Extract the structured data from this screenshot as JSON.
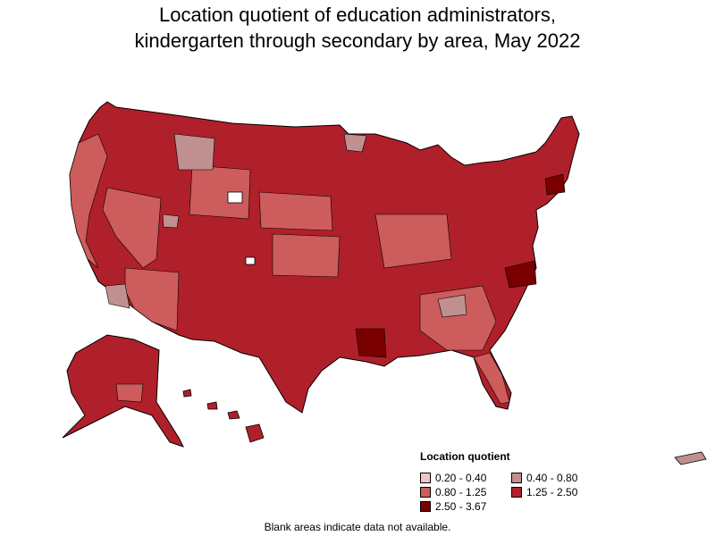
{
  "title": {
    "line1": "Location quotient of education administrators,",
    "line2": "kindergarten through secondary by area, May 2022"
  },
  "legend": {
    "title": "Location quotient",
    "items": [
      {
        "label": "0.20 - 0.40",
        "color": "#f2c4c4"
      },
      {
        "label": "0.40 - 0.80",
        "color": "#c09090"
      },
      {
        "label": "0.80 - 1.25",
        "color": "#cd5c5c"
      },
      {
        "label": "1.25 - 2.50",
        "color": "#b0202a"
      },
      {
        "label": "2.50 - 3.67",
        "color": "#7a0000"
      }
    ]
  },
  "footnote": "Blank areas indicate data not available.",
  "map_colors": {
    "border": "#000000",
    "no_data": "#ffffff"
  }
}
